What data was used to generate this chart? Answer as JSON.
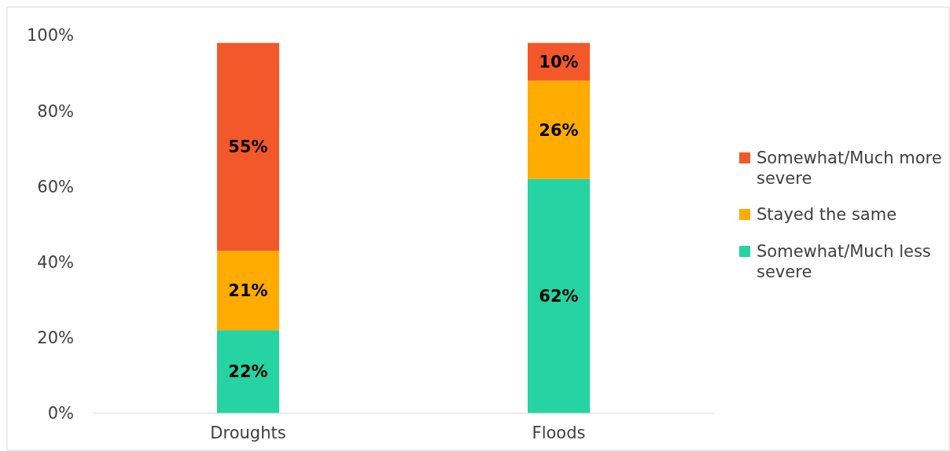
{
  "chart_data": {
    "type": "bar",
    "stacked": true,
    "categories": [
      "Droughts",
      "Floods"
    ],
    "series": [
      {
        "name": "Somewhat/Much less severe",
        "color": "#26d3a2",
        "values": [
          22,
          62
        ],
        "value_labels": [
          "22%",
          "62%"
        ]
      },
      {
        "name": "Stayed the same",
        "color": "#ffab00",
        "values": [
          21,
          26
        ],
        "value_labels": [
          "21%",
          "26%"
        ]
      },
      {
        "name": "Somewhat/Much more severe",
        "color": "#f2582a",
        "values": [
          55,
          10
        ],
        "value_labels": [
          "55%",
          "10%"
        ]
      }
    ],
    "ylim": [
      0,
      100
    ],
    "yticks": [
      {
        "value": 0,
        "label": "0%"
      },
      {
        "value": 20,
        "label": "20%"
      },
      {
        "value": 40,
        "label": "40%"
      },
      {
        "value": 60,
        "label": "60%"
      },
      {
        "value": 80,
        "label": "80%"
      },
      {
        "value": 100,
        "label": "100%"
      }
    ],
    "grid": false,
    "legend": "right"
  }
}
